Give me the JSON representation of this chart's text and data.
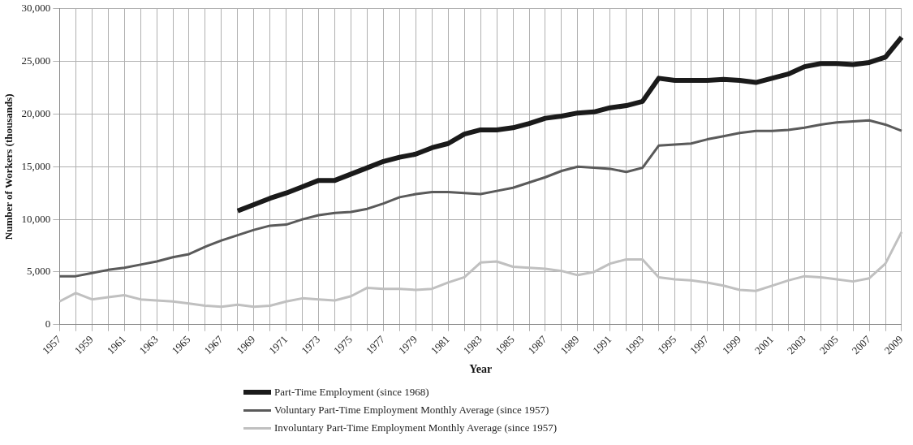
{
  "chart_data": {
    "type": "line",
    "xlabel": "Year",
    "ylabel": "Number of Workers (thousands)",
    "categories": [
      "1957",
      null,
      "1959",
      null,
      "1961",
      null,
      "1963",
      null,
      "1965",
      null,
      "1967",
      null,
      "1969",
      null,
      "1971",
      null,
      "1973",
      null,
      "1975",
      null,
      "1977",
      null,
      "1979",
      null,
      "1981",
      null,
      "1983",
      null,
      "1985",
      null,
      "1987",
      null,
      "1989",
      null,
      "1991",
      null,
      "1993",
      null,
      "1995",
      null,
      "1997",
      null,
      "1999",
      null,
      "2001",
      null,
      "2003",
      null,
      "2005",
      null,
      "2007",
      null,
      "2009"
    ],
    "series": [
      {
        "name": "Part-Time Employment (since 1968)",
        "color": "#1a1a1a",
        "values": [
          null,
          null,
          null,
          null,
          null,
          null,
          null,
          null,
          null,
          null,
          null,
          10800,
          11400,
          12000,
          12500,
          13100,
          13700,
          13700,
          14300,
          14900,
          15500,
          15900,
          16200,
          16800,
          17200,
          18100,
          18500,
          18500,
          18700,
          19100,
          19600,
          19800,
          20100,
          20200,
          20600,
          20800,
          21200,
          23400,
          23200,
          23200,
          23200,
          23300,
          23200,
          23000,
          23400,
          23800,
          24500,
          24800,
          24800,
          24700,
          24900,
          25400,
          27300
        ]
      },
      {
        "name": "Voluntary Part-Time Employment Monthly Average (since 1957)",
        "color": "#5a5a5a",
        "values": [
          4600,
          4600,
          4900,
          5200,
          5400,
          5700,
          6000,
          6400,
          6700,
          7400,
          8000,
          8500,
          9000,
          9400,
          9500,
          10000,
          10400,
          10600,
          10700,
          11000,
          11500,
          12100,
          12400,
          12600,
          12600,
          12500,
          12400,
          12700,
          13000,
          13500,
          14000,
          14600,
          15000,
          14900,
          14800,
          14500,
          14900,
          17000,
          17100,
          17200,
          17600,
          17900,
          18200,
          18400,
          18400,
          18500,
          18700,
          19000,
          19200,
          19300,
          19400,
          19000,
          18400
        ]
      },
      {
        "name": "Involuntary Part-Time Employment Monthly Average (since 1957)",
        "color": "#c0c0c0",
        "values": [
          2200,
          3000,
          2400,
          2600,
          2800,
          2400,
          2300,
          2200,
          2000,
          1800,
          1700,
          1900,
          1700,
          1800,
          2200,
          2500,
          2400,
          2300,
          2700,
          3500,
          3400,
          3400,
          3300,
          3400,
          4000,
          4500,
          5900,
          6000,
          5500,
          5400,
          5300,
          5100,
          4700,
          5000,
          5800,
          6200,
          6200,
          4500,
          4300,
          4200,
          4000,
          3700,
          3300,
          3200,
          3700,
          4200,
          4600,
          4500,
          4300,
          4100,
          4400,
          5800,
          8800
        ]
      }
    ],
    "ylim": [
      0,
      30000
    ],
    "yticks": [
      0,
      {
        "value": 5000,
        "label": "5,000"
      },
      {
        "value": 10000,
        "label": "10,000"
      },
      {
        "value": 15000,
        "label": "15,000"
      },
      {
        "value": 20000,
        "label": "20,000"
      },
      {
        "value": 25000,
        "label": "25,000"
      },
      {
        "value": 30000,
        "label": "30,000"
      }
    ],
    "grid": true,
    "legend": "bottom",
    "marker": "none",
    "line_style": "solid"
  }
}
